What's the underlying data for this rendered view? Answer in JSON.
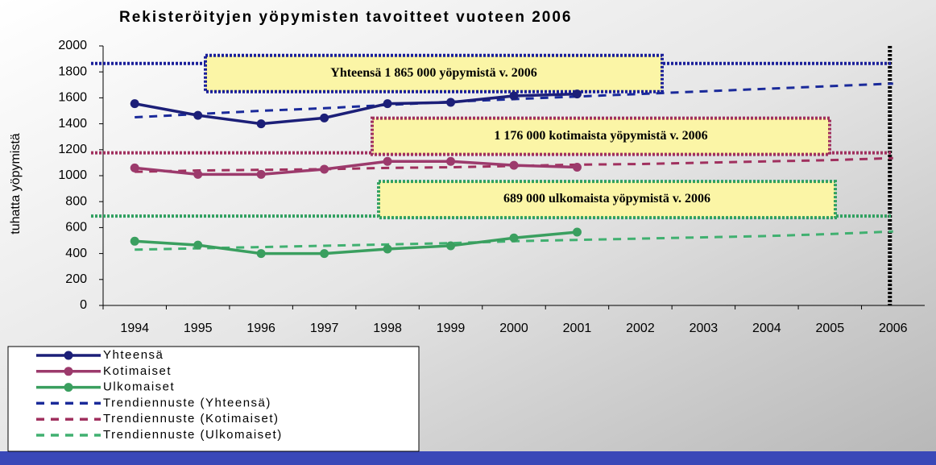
{
  "chart_data": {
    "type": "line",
    "title": "Rekisteröityjen yöpymisten tavoitteet vuoteen 2006",
    "y_label": "tuhatta yöpymistä",
    "categories": [
      "1994",
      "1995",
      "1996",
      "1997",
      "1998",
      "1999",
      "2000",
      "2001",
      "2002",
      "2003",
      "2004",
      "2005",
      "2006"
    ],
    "ylim": [
      0,
      2000
    ],
    "yticks": [
      0,
      200,
      400,
      600,
      800,
      1000,
      1200,
      1400,
      1600,
      1800,
      2000
    ],
    "series": [
      {
        "name": "Yhteensä",
        "color": "#1c1f78",
        "style": "solid",
        "values": [
          1555,
          1465,
          1400,
          1445,
          1555,
          1565,
          1615,
          1630,
          null,
          null,
          null,
          null,
          null
        ]
      },
      {
        "name": "Kotimaiset",
        "color": "#9c3a6c",
        "style": "solid",
        "values": [
          1060,
          1010,
          1010,
          1050,
          1110,
          1110,
          1080,
          1065,
          null,
          null,
          null,
          null,
          null
        ]
      },
      {
        "name": "Ulkomaiset",
        "color": "#3a9f5f",
        "style": "solid",
        "values": [
          495,
          465,
          400,
          400,
          435,
          460,
          520,
          565,
          null,
          null,
          null,
          null,
          null
        ]
      },
      {
        "name": "Trendiennuste (Yhteensä)",
        "color": "#1a2a9a",
        "style": "dashed",
        "values": [
          1450,
          1475,
          1500,
          1520,
          1545,
          1570,
          1590,
          1610,
          1630,
          1650,
          1670,
          1690,
          1710
        ]
      },
      {
        "name": "Trendiennuste (Kotimaiset)",
        "color": "#a0305e",
        "style": "dashed",
        "values": [
          1030,
          1040,
          1045,
          1050,
          1060,
          1065,
          1075,
          1085,
          1090,
          1100,
          1110,
          1120,
          1135
        ]
      },
      {
        "name": "Trendiennuste (Ulkomaiset)",
        "color": "#40b070",
        "style": "dashed",
        "values": [
          430,
          440,
          450,
          460,
          470,
          480,
          495,
          505,
          515,
          525,
          535,
          550,
          570
        ]
      }
    ],
    "reference_lines": [
      {
        "value": 1865,
        "color": "#1a1f9a",
        "label": "Yhteensä 1 865 000 yöpymistä v. 2006"
      },
      {
        "value": 1176,
        "color": "#a0305e",
        "label": "1 176 000 kotimaista yöpymistä v. 2006"
      },
      {
        "value": 689,
        "color": "#30a060",
        "label": "689 000 ulkomaista yöpymistä v. 2006"
      }
    ],
    "target_category": "2006",
    "legend": "bottom-left"
  }
}
